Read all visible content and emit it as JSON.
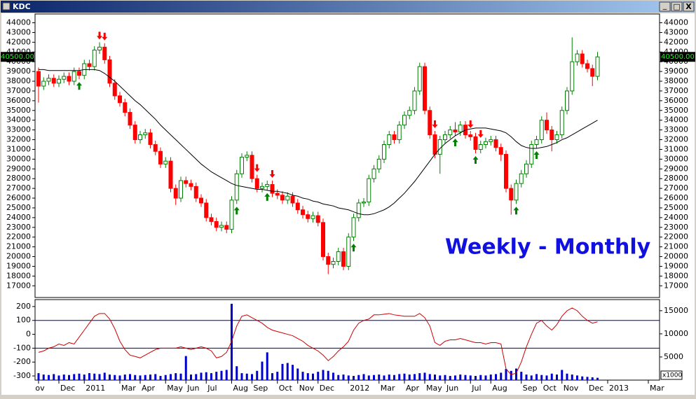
{
  "window": {
    "title": "KDC",
    "buttons": [
      "_",
      "□",
      "X"
    ]
  },
  "chart_data": [
    {
      "type": "candlestick",
      "annotation": "Weekly - Monthly",
      "last_close_label": "40500.00",
      "categories": [
        "ov",
        null,
        null,
        null,
        "Dec",
        null,
        null,
        null,
        null,
        "2011",
        null,
        null,
        null,
        null,
        null,
        null,
        "Mar",
        null,
        null,
        null,
        "Apr",
        null,
        null,
        null,
        null,
        "May",
        null,
        null,
        null,
        "Jun",
        null,
        null,
        null,
        "Jul",
        null,
        null,
        null,
        null,
        "Aug",
        null,
        null,
        null,
        "Sep",
        null,
        null,
        null,
        null,
        "Oct",
        null,
        null,
        null,
        "Nov",
        null,
        null,
        null,
        "Dec",
        null,
        null,
        null,
        null,
        null,
        "2012",
        null,
        null,
        null,
        null,
        null,
        "Mar",
        null,
        null,
        null,
        null,
        "Apr",
        null,
        null,
        null,
        "May",
        null,
        null,
        null,
        "Jun",
        null,
        null,
        null,
        null,
        "Jul",
        null,
        null,
        null,
        "Aug",
        null,
        null,
        null,
        null,
        null,
        "Sep",
        null,
        null,
        null,
        "Oct",
        null,
        null,
        null,
        "Nov",
        null,
        null,
        null,
        null,
        "Dec",
        null,
        null,
        null,
        "2013",
        null,
        null,
        null,
        null,
        null,
        null,
        null,
        "Mar",
        null
      ],
      "open": [
        39000,
        37500,
        38000,
        38300,
        37800,
        38200,
        38500,
        38000,
        39000,
        38600,
        39800,
        39500,
        41200,
        41500,
        40200,
        37800,
        36500,
        35800,
        34800,
        33500,
        32000,
        32500,
        32700,
        31500,
        30800,
        29500,
        29800,
        27000,
        26000,
        27800,
        27500,
        27200,
        26000,
        25500,
        24000,
        23600,
        23000,
        23200,
        22800,
        25800,
        28500,
        30200,
        30400,
        28000,
        27000,
        27200,
        27400,
        26500,
        26300,
        25800,
        26200,
        25500,
        24800,
        24300,
        23900,
        24200,
        23500,
        20000,
        19200,
        19500,
        20500,
        19000,
        22000,
        24000,
        25500,
        25600,
        28000,
        29000,
        30000,
        31500,
        32500,
        32000,
        33500,
        34500,
        35000,
        37000,
        39500,
        35000,
        32500,
        30500,
        32000,
        32500,
        33000,
        32800,
        33500,
        32500,
        32300,
        31000,
        31500,
        31800,
        32000,
        31200,
        30500,
        27000,
        25800,
        27500,
        28500,
        29500,
        31500,
        32000,
        34000,
        33000,
        32000,
        32500,
        35000,
        37000,
        40000,
        40800,
        39800,
        39300,
        38500,
        null,
        null,
        null,
        null,
        null,
        null,
        null,
        null,
        null,
        null,
        null
      ],
      "high": [
        39400,
        38400,
        38700,
        38700,
        38600,
        38900,
        38900,
        39400,
        39400,
        40200,
        40200,
        41600,
        42000,
        41900,
        40600,
        38200,
        36900,
        36200,
        35200,
        33900,
        32900,
        33100,
        33100,
        31900,
        31200,
        30200,
        30200,
        27400,
        28200,
        28200,
        27900,
        27600,
        26400,
        25900,
        24400,
        24000,
        23600,
        23600,
        26200,
        28900,
        30600,
        30800,
        30800,
        28400,
        27600,
        27800,
        27800,
        26900,
        26700,
        26600,
        26600,
        25900,
        25200,
        24700,
        24600,
        24600,
        23900,
        20400,
        19900,
        20900,
        20900,
        22400,
        24400,
        25900,
        26000,
        28400,
        29400,
        30400,
        31900,
        32900,
        32900,
        33900,
        34900,
        35400,
        37400,
        39900,
        39900,
        35400,
        32900,
        32400,
        32900,
        33400,
        33800,
        33900,
        33900,
        32900,
        32700,
        31900,
        32200,
        32400,
        32400,
        31600,
        30900,
        27400,
        27900,
        28900,
        29900,
        31900,
        32400,
        34400,
        34800,
        33400,
        32900,
        35400,
        37400,
        42500,
        41200,
        41200,
        40200,
        39700,
        41000,
        null,
        null,
        null,
        null,
        null,
        null,
        null,
        null,
        null,
        null,
        null
      ],
      "low": [
        35800,
        37100,
        37600,
        37400,
        37400,
        37800,
        37600,
        37600,
        38200,
        38200,
        39100,
        39100,
        40800,
        39800,
        37400,
        36100,
        35400,
        34400,
        33100,
        31600,
        31600,
        32100,
        31100,
        30400,
        29100,
        29100,
        26600,
        25300,
        25600,
        27100,
        26800,
        25600,
        25100,
        23600,
        23200,
        22600,
        22600,
        22400,
        22400,
        25400,
        28100,
        29800,
        27600,
        26600,
        26600,
        26800,
        26100,
        25900,
        25400,
        25400,
        25100,
        24400,
        23900,
        23500,
        23500,
        23100,
        19600,
        18200,
        18800,
        19100,
        18600,
        18600,
        21600,
        23600,
        25100,
        25200,
        27600,
        28600,
        29600,
        31100,
        31600,
        31600,
        33100,
        34100,
        34600,
        36600,
        34600,
        32100,
        30100,
        28500,
        31600,
        32100,
        32400,
        32400,
        32100,
        31900,
        30600,
        30600,
        31100,
        31400,
        30800,
        29800,
        26600,
        24300,
        25400,
        27100,
        28100,
        29100,
        31100,
        31600,
        32600,
        30800,
        31600,
        32100,
        34600,
        36600,
        39600,
        39400,
        38900,
        37500,
        38100,
        null,
        null,
        null,
        null,
        null,
        null,
        null,
        null,
        null,
        null,
        null
      ],
      "close": [
        37500,
        38000,
        38300,
        37800,
        38200,
        38500,
        38000,
        39000,
        38600,
        39800,
        39500,
        41200,
        41500,
        40200,
        37800,
        36500,
        35800,
        34800,
        33500,
        32000,
        32500,
        32700,
        31500,
        30800,
        29500,
        29800,
        27000,
        26000,
        27800,
        27500,
        27200,
        26000,
        25500,
        24000,
        23600,
        23000,
        23200,
        22800,
        25800,
        28500,
        30200,
        30400,
        28000,
        27000,
        27200,
        27400,
        26500,
        26300,
        25800,
        26200,
        25500,
        24800,
        24300,
        23900,
        24200,
        23500,
        20000,
        19200,
        19500,
        20500,
        19000,
        22000,
        24000,
        25500,
        25600,
        28000,
        29000,
        30000,
        31500,
        32500,
        32000,
        33500,
        34500,
        35000,
        37000,
        39500,
        35000,
        32500,
        30500,
        32000,
        32500,
        33000,
        32800,
        33500,
        32500,
        32300,
        31000,
        31500,
        31800,
        32000,
        31200,
        30500,
        27000,
        25800,
        27500,
        28500,
        29500,
        31500,
        32000,
        34000,
        33000,
        32000,
        32500,
        35000,
        37000,
        40000,
        40800,
        39800,
        39300,
        38500,
        40500,
        null,
        null,
        null,
        null,
        null,
        null,
        null,
        null,
        null,
        null,
        null
      ],
      "up_color": "#008000",
      "down_color": "#ff0000",
      "moving_average": {
        "color": "#000000",
        "values": [
          39200,
          39200,
          39100,
          39100,
          39100,
          39100,
          39100,
          39100,
          39100,
          39200,
          39200,
          39200,
          39100,
          38800,
          38400,
          38000,
          37500,
          37000,
          36500,
          36000,
          35600,
          35100,
          34600,
          34100,
          33500,
          33000,
          32500,
          32000,
          31500,
          31000,
          30500,
          30000,
          29500,
          29100,
          28700,
          28400,
          28100,
          27800,
          27500,
          27300,
          27200,
          27100,
          27000,
          26900,
          26900,
          26800,
          26700,
          26700,
          26600,
          26500,
          26300,
          26200,
          26000,
          25900,
          25700,
          25600,
          25400,
          25300,
          25200,
          25000,
          24900,
          24800,
          24600,
          24400,
          24300,
          24300,
          24400,
          24600,
          24800,
          25100,
          25500,
          26000,
          26500,
          27100,
          27700,
          28400,
          29100,
          29800,
          30500,
          31100,
          31600,
          32000,
          32400,
          32700,
          33000,
          33100,
          33200,
          33200,
          33200,
          33100,
          33000,
          32900,
          32700,
          32300,
          31800,
          31400,
          31200,
          31100,
          31100,
          31200,
          31300,
          31500,
          31700,
          32000,
          32200,
          32500,
          32800,
          33100,
          33400,
          33700,
          34000,
          null,
          null,
          null,
          null,
          null,
          null,
          null,
          null,
          null,
          null,
          null
        ]
      },
      "buy_signals": [
        8,
        39,
        45,
        62,
        82,
        86,
        94,
        98
      ],
      "buy_color": "#008000",
      "sell_signals": [
        12,
        13,
        43,
        46,
        78,
        85,
        87
      ],
      "sell_color": "#ff0000",
      "ylim": [
        15800,
        44900
      ],
      "yticks": [
        17000,
        18000,
        19000,
        20000,
        21000,
        22000,
        23000,
        24000,
        25000,
        26000,
        27000,
        28000,
        29000,
        30000,
        31000,
        32000,
        33000,
        34000,
        35000,
        36000,
        37000,
        38000,
        39000,
        40000,
        41000,
        42000,
        43000,
        44000
      ]
    },
    {
      "type": "combo",
      "oscillator": {
        "color": "#cc0000",
        "values": [
          -130,
          -120,
          -100,
          -90,
          -70,
          -80,
          -60,
          -70,
          -20,
          30,
          80,
          130,
          150,
          150,
          110,
          40,
          -50,
          -110,
          -150,
          -160,
          -170,
          -150,
          -130,
          -110,
          -100,
          -100,
          -100,
          -100,
          -90,
          -100,
          -110,
          -100,
          -90,
          -100,
          -120,
          -170,
          -160,
          -130,
          -50,
          60,
          130,
          140,
          120,
          100,
          80,
          50,
          30,
          20,
          10,
          0,
          -10,
          -30,
          -50,
          -80,
          -100,
          -120,
          -150,
          -190,
          -160,
          -120,
          -90,
          -50,
          30,
          80,
          100,
          110,
          140,
          140,
          145,
          150,
          140,
          135,
          130,
          130,
          130,
          150,
          120,
          60,
          -60,
          -80,
          -50,
          -40,
          -40,
          -30,
          -40,
          -50,
          -60,
          -60,
          -70,
          -60,
          -60,
          -70,
          -250,
          -290,
          -280,
          -200,
          -90,
          0,
          80,
          100,
          60,
          30,
          70,
          130,
          170,
          190,
          170,
          130,
          100,
          80,
          90,
          null,
          null,
          null,
          null,
          null,
          null,
          null,
          null,
          null,
          null,
          null
        ]
      },
      "volume": {
        "color": "#0000cc",
        "axis": "y2",
        "values": [
          1500,
          1200,
          1100,
          1300,
          1000,
          1200,
          1100,
          1300,
          1400,
          1200,
          1500,
          1400,
          1300,
          1600,
          1200,
          1100,
          1000,
          1200,
          1300,
          1100,
          1000,
          1100,
          1200,
          1300,
          900,
          1100,
          1300,
          1500,
          1400,
          5200,
          1200,
          1300,
          1600,
          1700,
          1500,
          1800,
          2000,
          2200,
          16500,
          3000,
          1500,
          1400,
          1300,
          2000,
          4000,
          6000,
          1500,
          1800,
          3500,
          3700,
          3300,
          2500,
          1800,
          1500,
          1400,
          1800,
          2200,
          2000,
          1600,
          1100,
          1200,
          1000,
          900,
          1100,
          1300,
          1000,
          1100,
          1200,
          1000,
          1200,
          1100,
          1300,
          1400,
          1200,
          1300,
          1500,
          1600,
          1300,
          1200,
          1000,
          1100,
          900,
          1000,
          1200,
          1100,
          1000,
          900,
          1100,
          1000,
          1200,
          1300,
          1600,
          2400,
          2000,
          2500,
          1800,
          1200,
          1000,
          1300,
          1100,
          1000,
          1400,
          1200,
          2200,
          1400,
          1200,
          1000,
          800,
          700,
          600,
          500,
          null,
          null,
          null,
          null,
          null,
          null,
          null,
          null,
          null,
          null,
          null
        ]
      },
      "levels": [
        100,
        -100
      ],
      "level_color": "#000080",
      "ylim": [
        -330,
        250
      ],
      "yticks": [
        200,
        100,
        0,
        -100,
        -200,
        -300
      ],
      "y2lim": [
        0,
        17400
      ],
      "y2ticks": [
        5000,
        10000,
        15000
      ],
      "y2_unit_label": "x1000"
    }
  ]
}
